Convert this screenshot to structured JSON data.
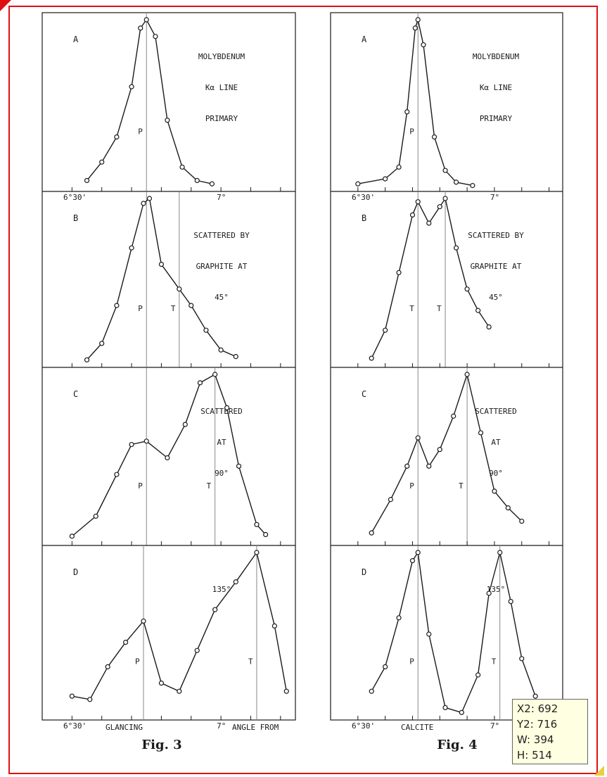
{
  "tooltip": {
    "x2": "X2: 692",
    "y2": "Y2: 716",
    "w": "W:  394",
    "h": "H:  514"
  },
  "colors": {
    "selection_border": "#e01010",
    "ink": "#1a1a1a",
    "tooltip_bg": "#ffffe1"
  },
  "chart_data": [
    {
      "type": "line",
      "figure": "Fig. 3",
      "xlabel_left": "6°30'",
      "xlabel_right": "7°",
      "axis_words": [
        "GLANCING",
        "ANGLE FROM"
      ],
      "xlim": [
        6.4,
        7.25
      ],
      "panels": [
        {
          "letter": "A",
          "labels": [
            "MOLYBDENUM",
            "Kα LINE",
            "PRIMARY"
          ],
          "tick_labels": [
            "6°30'",
            "7°"
          ],
          "peak_markers": [
            {
              "label": "P",
              "x": 6.75
            }
          ],
          "series": [
            {
              "x": [
                6.55,
                6.6,
                6.65,
                6.7,
                6.73,
                6.75,
                6.78,
                6.82,
                6.87,
                6.92,
                6.97
              ],
              "y": [
                0.04,
                0.15,
                0.3,
                0.6,
                0.95,
                1.0,
                0.9,
                0.4,
                0.12,
                0.04,
                0.02
              ]
            }
          ]
        },
        {
          "letter": "B",
          "labels": [
            "SCATTERED BY",
            "GRAPHITE AT",
            "45°"
          ],
          "tick_labels": [],
          "peak_markers": [
            {
              "label": "P",
              "x": 6.75
            },
            {
              "label": "T",
              "x": 6.86
            }
          ],
          "series": [
            {
              "x": [
                6.55,
                6.6,
                6.65,
                6.7,
                6.74,
                6.76,
                6.8,
                6.86,
                6.9,
                6.95,
                7.0,
                7.05
              ],
              "y": [
                0.02,
                0.12,
                0.35,
                0.7,
                0.97,
                1.0,
                0.6,
                0.45,
                0.35,
                0.2,
                0.08,
                0.04
              ]
            }
          ]
        },
        {
          "letter": "C",
          "labels": [
            "SCATTERED",
            "AT",
            "90°"
          ],
          "tick_labels": [],
          "peak_markers": [
            {
              "label": "P",
              "x": 6.75
            },
            {
              "label": "T",
              "x": 6.98
            }
          ],
          "series": [
            {
              "x": [
                6.5,
                6.58,
                6.65,
                6.7,
                6.75,
                6.82,
                6.88,
                6.93,
                6.98,
                7.02,
                7.06,
                7.12,
                7.15
              ],
              "y": [
                0.03,
                0.15,
                0.4,
                0.58,
                0.6,
                0.5,
                0.7,
                0.95,
                1.0,
                0.8,
                0.45,
                0.1,
                0.04
              ]
            }
          ]
        },
        {
          "letter": "D",
          "labels": [
            "135°"
          ],
          "tick_labels": [
            "6°30'",
            "7°"
          ],
          "peak_markers": [
            {
              "label": "P",
              "x": 6.74
            },
            {
              "label": "T",
              "x": 7.12
            }
          ],
          "series": [
            {
              "x": [
                6.5,
                6.56,
                6.62,
                6.68,
                6.74,
                6.8,
                6.86,
                6.92,
                6.98,
                7.05,
                7.12,
                7.18,
                7.22
              ],
              "y": [
                0.12,
                0.1,
                0.3,
                0.45,
                0.58,
                0.2,
                0.15,
                0.4,
                0.65,
                0.82,
                1.0,
                0.55,
                0.15
              ]
            }
          ]
        }
      ]
    },
    {
      "type": "line",
      "figure": "Fig. 4",
      "xlabel_left": "6°30'",
      "xlabel_right": "7°",
      "axis_words": [
        "CALCITE"
      ],
      "xlim": [
        6.4,
        7.25
      ],
      "panels": [
        {
          "letter": "A",
          "labels": [
            "MOLYBDENUM",
            "Kα LINE",
            "PRIMARY"
          ],
          "tick_labels": [
            "6°30'",
            "7°"
          ],
          "peak_markers": [
            {
              "label": "P",
              "x": 6.72
            }
          ],
          "series": [
            {
              "x": [
                6.5,
                6.6,
                6.65,
                6.68,
                6.71,
                6.72,
                6.74,
                6.78,
                6.82,
                6.86,
                6.92
              ],
              "y": [
                0.02,
                0.05,
                0.12,
                0.45,
                0.95,
                1.0,
                0.85,
                0.3,
                0.1,
                0.03,
                0.01
              ]
            }
          ]
        },
        {
          "letter": "B",
          "labels": [
            "SCATTERED BY",
            "GRAPHITE AT",
            "45°"
          ],
          "tick_labels": [],
          "peak_markers": [
            {
              "label": "T",
              "x": 6.72
            },
            {
              "label": "T",
              "x": 6.82
            }
          ],
          "series": [
            {
              "x": [
                6.55,
                6.6,
                6.65,
                6.7,
                6.72,
                6.76,
                6.8,
                6.82,
                6.86,
                6.9,
                6.94,
                6.98
              ],
              "y": [
                0.03,
                0.2,
                0.55,
                0.9,
                0.98,
                0.85,
                0.95,
                1.0,
                0.7,
                0.45,
                0.32,
                0.22
              ]
            }
          ]
        },
        {
          "letter": "C",
          "labels": [
            "SCATTERED",
            "AT",
            "90°"
          ],
          "tick_labels": [],
          "peak_markers": [
            {
              "label": "P",
              "x": 6.72
            },
            {
              "label": "T",
              "x": 6.9
            }
          ],
          "series": [
            {
              "x": [
                6.55,
                6.62,
                6.68,
                6.72,
                6.76,
                6.8,
                6.85,
                6.9,
                6.95,
                7.0,
                7.05,
                7.1
              ],
              "y": [
                0.05,
                0.25,
                0.45,
                0.62,
                0.45,
                0.55,
                0.75,
                1.0,
                0.65,
                0.3,
                0.2,
                0.12
              ]
            }
          ]
        },
        {
          "letter": "D",
          "labels": [
            "135°"
          ],
          "tick_labels": [
            "6°30'",
            "7°"
          ],
          "peak_markers": [
            {
              "label": "P",
              "x": 6.72
            },
            {
              "label": "T",
              "x": 7.02
            }
          ],
          "series": [
            {
              "x": [
                6.55,
                6.6,
                6.65,
                6.7,
                6.72,
                6.76,
                6.82,
                6.88,
                6.94,
                6.98,
                7.02,
                7.06,
                7.1,
                7.15
              ],
              "y": [
                0.15,
                0.3,
                0.6,
                0.95,
                1.0,
                0.5,
                0.05,
                0.02,
                0.25,
                0.75,
                1.0,
                0.7,
                0.35,
                0.12
              ]
            }
          ]
        }
      ]
    }
  ]
}
